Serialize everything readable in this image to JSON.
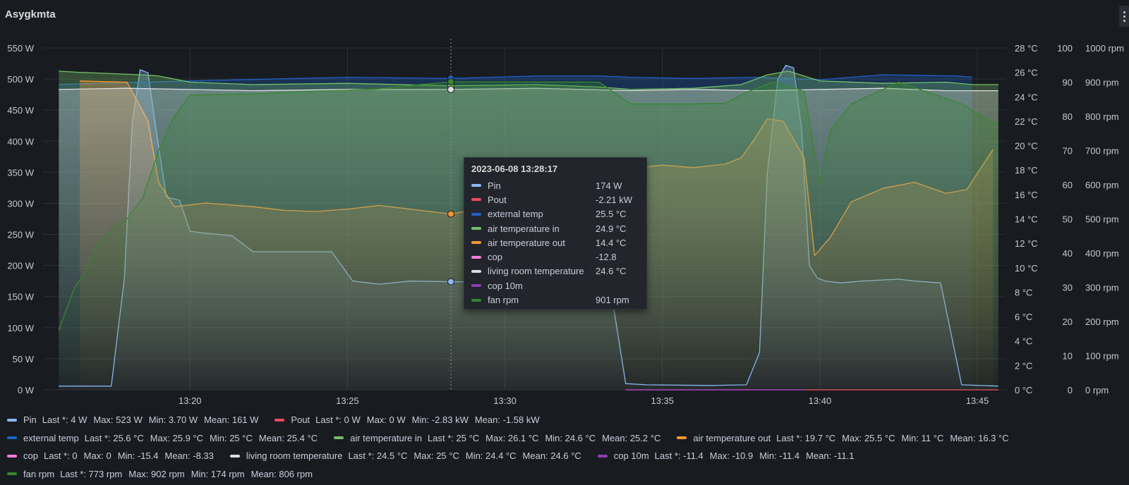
{
  "panel": {
    "title": "Asygkmta"
  },
  "tooltip": {
    "time": "2023-06-08 13:28:17",
    "rows": [
      {
        "name": "Pin",
        "value": "174 W",
        "color": "#8ab8ff"
      },
      {
        "name": "Pout",
        "value": "-2.21 kW",
        "color": "#f2495c"
      },
      {
        "name": "external temp",
        "value": "25.5 °C",
        "color": "#1f60c4"
      },
      {
        "name": "air temperature in",
        "value": "24.9 °C",
        "color": "#73bf69"
      },
      {
        "name": "air temperature out",
        "value": "14.4 °C",
        "color": "#ff9830"
      },
      {
        "name": "cop",
        "value": "-12.8",
        "color": "#ff7be0"
      },
      {
        "name": "living room temperature",
        "value": "24.6 °C",
        "color": "#dedede"
      },
      {
        "name": "cop 10m",
        "value": "",
        "color": "#8f3bb8"
      },
      {
        "name": "fan rpm",
        "value": "901 rpm",
        "color": "#37872d"
      }
    ]
  },
  "legend": [
    {
      "name": "Pin",
      "color": "#8ab8ff",
      "last": "Last *: 4 W",
      "max": "Max: 523 W",
      "min": "Min: 3.70 W",
      "mean": "Mean: 161 W"
    },
    {
      "name": "Pout",
      "color": "#f2495c",
      "last": "Last *: 0 W",
      "max": "Max: 0 W",
      "min": "Min: -2.83 kW",
      "mean": "Mean: -1.58 kW"
    },
    {
      "name": "external temp",
      "color": "#1f60c4",
      "last": "Last *: 25.6 °C",
      "max": "Max: 25.9 °C",
      "min": "Min: 25 °C",
      "mean": "Mean: 25.4 °C"
    },
    {
      "name": "air temperature in",
      "color": "#73bf69",
      "last": "Last *: 25 °C",
      "max": "Max: 26.1 °C",
      "min": "Min: 24.6 °C",
      "mean": "Mean: 25.2 °C"
    },
    {
      "name": "air temperature out",
      "color": "#ff9830",
      "last": "Last *: 19.7 °C",
      "max": "Max: 25.5 °C",
      "min": "Min: 11 °C",
      "mean": "Mean: 16.3 °C"
    },
    {
      "name": "cop",
      "color": "#ff7be0",
      "last": "Last *: 0",
      "max": "Max: 0",
      "min": "Min: -15.4",
      "mean": "Mean: -8.33"
    },
    {
      "name": "living room temperature",
      "color": "#dedede",
      "last": "Last *: 24.5 °C",
      "max": "Max: 25 °C",
      "min": "Min: 24.4 °C",
      "mean": "Mean: 24.6 °C"
    },
    {
      "name": "cop 10m",
      "color": "#8f3bb8",
      "last": "Last *: -11.4",
      "max": "Max: -10.9",
      "min": "Min: -11.4",
      "mean": "Mean: -11.1"
    },
    {
      "name": "fan rpm",
      "color": "#37872d",
      "last": "Last *: 773 rpm",
      "max": "Max: 902 rpm",
      "min": "Min: 174 rpm",
      "mean": "Mean: 806 rpm"
    }
  ],
  "chart_data": {
    "type": "line",
    "grid": true,
    "hover_time": "13:28:17",
    "x_ticks": [
      "13:20",
      "13:25",
      "13:30",
      "13:35",
      "13:40",
      "13:45"
    ],
    "axes": {
      "power": {
        "ticks": [
          "0 W",
          "50 W",
          "100 W",
          "150 W",
          "200 W",
          "250 W",
          "300 W",
          "350 W",
          "400 W",
          "450 W",
          "500 W",
          "550 W"
        ],
        "ylim": [
          0,
          550
        ]
      },
      "temperature": {
        "ticks": [
          "0 °C",
          "2 °C",
          "4 °C",
          "6 °C",
          "8 °C",
          "10 °C",
          "12 °C",
          "14 °C",
          "16 °C",
          "18 °C",
          "20 °C",
          "22 °C",
          "24 °C",
          "26 °C",
          "28 °C"
        ],
        "ylim": [
          0,
          28
        ]
      },
      "cop": {
        "ticks": [
          "0",
          "10",
          "20",
          "30",
          "40",
          "50",
          "60",
          "70",
          "80",
          "90",
          "100"
        ],
        "ylim": [
          0,
          100
        ]
      },
      "rpm": {
        "ticks": [
          "0 rpm",
          "100 rpm",
          "200 rpm",
          "300 rpm",
          "400 rpm",
          "500 rpm",
          "600 rpm",
          "700 rpm",
          "800 rpm",
          "900 rpm",
          "1000 rpm"
        ],
        "ylim": [
          0,
          1000
        ]
      }
    },
    "series": [
      {
        "name": "Pin",
        "axis": "power",
        "color": "#8ab8ff",
        "x": [
          "13:15:50",
          "13:17:30",
          "13:17:55",
          "13:18:10",
          "13:18:25",
          "13:18:40",
          "13:18:55",
          "13:19:15",
          "13:19:40",
          "13:20:00",
          "13:20:30",
          "13:21:20",
          "13:22:00",
          "13:23:20",
          "13:24:00",
          "13:24:30",
          "13:25:10",
          "13:26:00",
          "13:27:00",
          "13:28:17",
          "13:29:00",
          "13:33:20",
          "13:33:50",
          "13:34:30",
          "13:36:30",
          "13:37:40",
          "13:38:05",
          "13:38:20",
          "13:38:40",
          "13:38:55",
          "13:39:10",
          "13:39:25",
          "13:39:40",
          "13:39:55",
          "13:40:10",
          "13:40:40",
          "13:41:20",
          "13:42:30",
          "13:43:00",
          "13:43:50",
          "13:44:30",
          "13:45:40"
        ],
        "values": [
          6,
          6,
          180,
          430,
          515,
          510,
          420,
          310,
          305,
          255,
          252,
          248,
          222,
          222,
          222,
          222,
          175,
          170,
          175,
          174,
          174,
          170,
          10,
          8,
          7,
          8,
          60,
          350,
          500,
          522,
          518,
          420,
          200,
          180,
          175,
          172,
          175,
          178,
          175,
          172,
          8,
          6
        ]
      },
      {
        "name": "Pout",
        "axis": "power",
        "color": "#f2495c",
        "x": [
          "13:33:50",
          "13:39:30",
          "13:44:20",
          "13:45:40"
        ],
        "values": [
          -2830,
          -2830,
          0,
          0
        ]
      },
      {
        "name": "external temp",
        "axis": "temperature",
        "color": "#1f60c4",
        "x": [
          "13:15:50",
          "13:17:00",
          "13:20:00",
          "13:25:00",
          "13:28:17",
          "13:31:00",
          "13:33:00",
          "13:34:00",
          "13:36:00",
          "13:38:00",
          "13:40:00",
          "13:42:00",
          "13:44:20",
          "13:44:50"
        ],
        "values": [
          25,
          25.1,
          25.3,
          25.6,
          25.5,
          25.7,
          25.7,
          25.6,
          25.5,
          25.6,
          25.4,
          25.8,
          25.7,
          25.6
        ]
      },
      {
        "name": "air temperature in",
        "axis": "temperature",
        "color": "#73bf69",
        "x": [
          "13:15:50",
          "13:16:30",
          "13:17:30",
          "13:18:30",
          "13:19:00",
          "13:20:00",
          "13:22:00",
          "13:25:00",
          "13:28:17",
          "13:31:00",
          "13:33:00",
          "13:34:00",
          "13:36:00",
          "13:37:30",
          "13:38:20",
          "13:39:00",
          "13:40:00",
          "13:42:00",
          "13:44:00",
          "13:44:50",
          "13:45:40"
        ],
        "values": [
          26.1,
          26,
          25.9,
          25.8,
          25.7,
          25.2,
          25,
          25.1,
          24.9,
          25,
          24.8,
          24.6,
          24.7,
          25,
          25.8,
          26.1,
          25.3,
          25.1,
          25.2,
          25,
          25
        ]
      },
      {
        "name": "air temperature out",
        "axis": "temperature",
        "color": "#ff9830",
        "x": [
          "13:16:30",
          "13:18:00",
          "13:18:40",
          "13:19:00",
          "13:19:30",
          "13:20:30",
          "13:22:00",
          "13:23:00",
          "13:24:00",
          "13:25:00",
          "13:26:00",
          "13:28:17",
          "13:33:40",
          "13:34:10",
          "13:35:00",
          "13:36:00",
          "13:37:00",
          "13:37:30",
          "13:37:55",
          "13:38:20",
          "13:38:50",
          "13:39:30",
          "13:39:50",
          "13:40:20",
          "13:41:00",
          "13:42:00",
          "13:43:00",
          "13:44:00",
          "13:44:40",
          "13:45:30"
        ],
        "values": [
          25.3,
          25.2,
          22,
          17,
          15,
          15.3,
          15,
          14.7,
          14.6,
          14.8,
          15.1,
          14.4,
          17,
          18.2,
          18.4,
          18.2,
          18.5,
          19,
          20.5,
          22.2,
          22,
          19,
          11,
          12.5,
          15.4,
          16.5,
          17,
          16.1,
          16.4,
          19.7
        ]
      },
      {
        "name": "cop",
        "axis": "cop",
        "color": "#ff7be0",
        "x": [
          "13:33:50",
          "13:39:30"
        ],
        "values": [
          -15.4,
          -15.4
        ]
      },
      {
        "name": "living room temperature",
        "axis": "temperature",
        "color": "#dedede",
        "x": [
          "13:15:50",
          "13:18:00",
          "13:20:00",
          "13:22:00",
          "13:25:00",
          "13:28:17",
          "13:31:00",
          "13:34:00",
          "13:36:00",
          "13:38:00",
          "13:40:00",
          "13:42:00",
          "13:44:00",
          "13:45:40"
        ],
        "values": [
          24.6,
          24.7,
          24.6,
          24.5,
          24.6,
          24.6,
          24.7,
          24.5,
          24.6,
          24.5,
          24.6,
          24.7,
          24.5,
          24.5
        ]
      },
      {
        "name": "cop 10m",
        "axis": "cop",
        "color": "#8f3bb8",
        "x": [
          "13:33:50",
          "13:39:30"
        ],
        "values": [
          -11.1,
          -11.1
        ]
      },
      {
        "name": "fan rpm",
        "axis": "rpm",
        "color": "#37872d",
        "x": [
          "13:15:50",
          "13:16:20",
          "13:16:35",
          "13:16:50",
          "13:17:05",
          "13:17:40",
          "13:18:00",
          "13:18:30",
          "13:19:00",
          "13:19:30",
          "13:20:00",
          "13:22:00",
          "13:26:00",
          "13:27:00",
          "13:28:17",
          "13:33:00",
          "13:34:00",
          "13:36:00",
          "13:37:00",
          "13:37:40",
          "13:38:30",
          "13:39:30",
          "13:40:00",
          "13:40:20",
          "13:41:00",
          "13:42:30",
          "13:44:30",
          "13:45:40"
        ],
        "values": [
          174,
          300,
          330,
          380,
          430,
          480,
          500,
          560,
          700,
          800,
          862,
          866,
          880,
          890,
          901,
          900,
          836,
          836,
          838,
          870,
          900,
          874,
          600,
          760,
          836,
          900,
          836,
          773
        ]
      }
    ]
  }
}
